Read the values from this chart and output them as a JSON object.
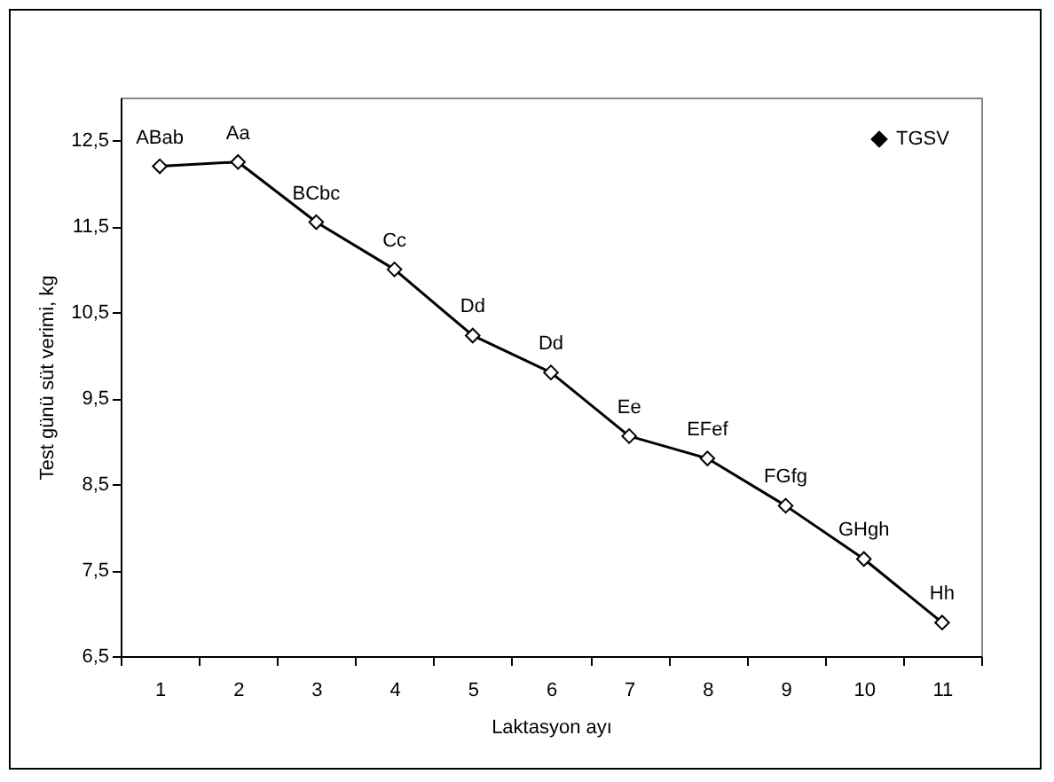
{
  "chart_data": {
    "type": "line",
    "xlabel": "Laktasyon ayı",
    "ylabel": "Test günü süt verimi, kg",
    "categories": [
      "1",
      "2",
      "3",
      "4",
      "5",
      "6",
      "7",
      "8",
      "9",
      "10",
      "11"
    ],
    "series": [
      {
        "name": "TGSV",
        "color": "#000000",
        "values": [
          12.2,
          12.25,
          11.55,
          11.0,
          10.23,
          9.8,
          9.06,
          8.8,
          8.25,
          7.63,
          6.89
        ]
      }
    ],
    "ylim": [
      6.5,
      13.0
    ],
    "yticks": [
      {
        "value": 6.5,
        "label": "6,5"
      },
      {
        "value": 7.5,
        "label": "7,5"
      },
      {
        "value": 8.5,
        "label": "8,5"
      },
      {
        "value": 9.5,
        "label": "9,5"
      },
      {
        "value": 10.5,
        "label": "10,5"
      },
      {
        "value": 11.5,
        "label": "11,5"
      },
      {
        "value": 12.5,
        "label": "12,5"
      }
    ],
    "annotations": [
      {
        "text": "ABab",
        "x": "1",
        "y": 12.2
      },
      {
        "text": "Aa",
        "x": "2",
        "y": 12.25
      },
      {
        "text": "BCbc",
        "x": "3",
        "y": 11.55
      },
      {
        "text": "Cc",
        "x": "4",
        "y": 11.0
      },
      {
        "text": "Dd",
        "x": "5",
        "y": 10.23
      },
      {
        "text": "Dd",
        "x": "6",
        "y": 9.8
      },
      {
        "text": "Ee",
        "x": "7",
        "y": 9.06
      },
      {
        "text": "EFef",
        "x": "8",
        "y": 8.8
      },
      {
        "text": "FGfg",
        "x": "9",
        "y": 8.25
      },
      {
        "text": "GHgh",
        "x": "10",
        "y": 7.63
      },
      {
        "text": "Hh",
        "x": "11",
        "y": 6.89
      }
    ],
    "grid": false,
    "legend": "top right",
    "marker": "diamond",
    "line_style": "solid"
  }
}
